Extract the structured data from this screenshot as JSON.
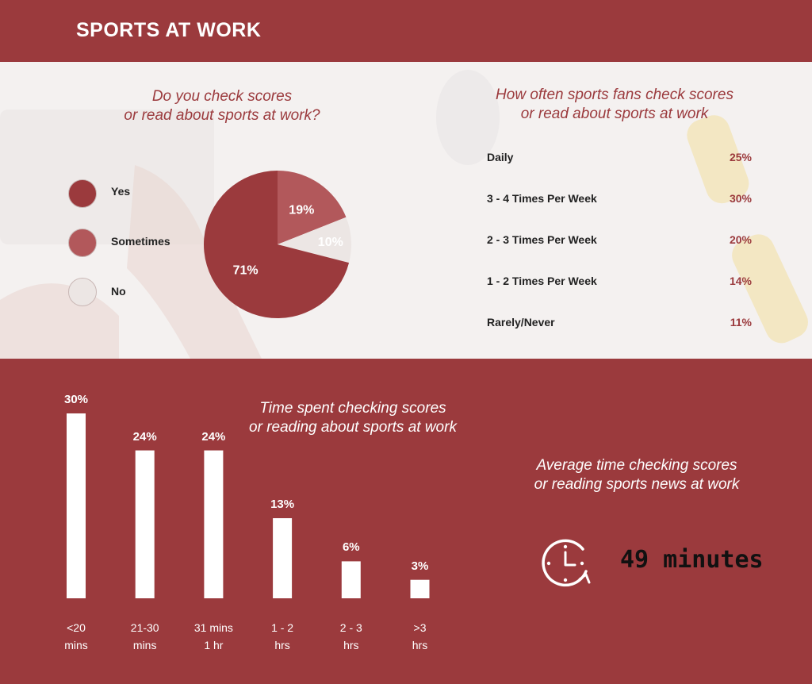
{
  "header": {
    "title": "SPORTS AT WORK"
  },
  "colors": {
    "brand": "#9b3a3d",
    "yes": "#9b3a3d",
    "sometimes": "#b2585b",
    "no": "#ece6e4",
    "bar": "#ffffff"
  },
  "chart_data": [
    {
      "type": "pie",
      "title_line1": "Do you check scores",
      "title_line2": "or read about sports at work?",
      "categories": [
        "Yes",
        "Sometimes",
        "No"
      ],
      "values": [
        71,
        19,
        10
      ],
      "value_labels": [
        "71%",
        "19%",
        "10%"
      ]
    },
    {
      "type": "table",
      "title_line1": "How often sports fans check scores",
      "title_line2": "or read about sports at work",
      "rows": [
        {
          "label": "Daily",
          "value": "25%"
        },
        {
          "label": "3 - 4 Times Per Week",
          "value": "30%"
        },
        {
          "label": "2 - 3 Times Per Week",
          "value": "20%"
        },
        {
          "label": "1 - 2 Times Per Week",
          "value": "14%"
        },
        {
          "label": "Rarely/Never",
          "value": "11%"
        }
      ]
    },
    {
      "type": "bar",
      "title_line1": "Time spent checking scores",
      "title_line2": "or reading about sports at work",
      "categories": [
        {
          "line1": "<20",
          "line2": "mins"
        },
        {
          "line1": "21-30",
          "line2": "mins"
        },
        {
          "line1": "31 mins",
          "line2": "1 hr"
        },
        {
          "line1": "1 - 2",
          "line2": "hrs"
        },
        {
          "line1": "2 - 3",
          "line2": "hrs"
        },
        {
          "line1": ">3",
          "line2": "hrs"
        }
      ],
      "values": [
        30,
        24,
        24,
        13,
        6,
        3
      ],
      "value_labels": [
        "30%",
        "24%",
        "24%",
        "13%",
        "6%",
        "3%"
      ],
      "ylim": [
        0,
        30
      ]
    }
  ],
  "average": {
    "title_line1": "Average time checking scores",
    "title_line2": "or reading sports news at work",
    "value": "49 minutes",
    "icon": "clock-icon"
  }
}
